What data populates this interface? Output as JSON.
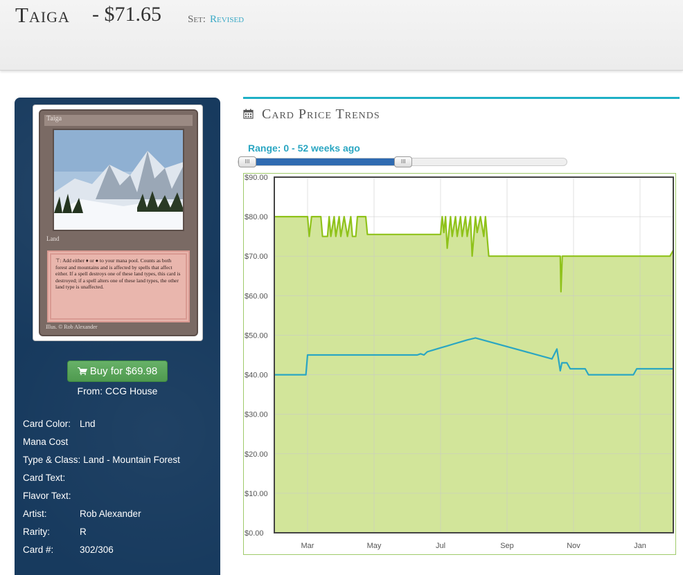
{
  "header": {
    "card_name": "Taiga",
    "price": "- $71.65",
    "set_label": "Set:",
    "set_name": "Revised"
  },
  "card_image": {
    "name": "Taiga",
    "type_line": "Land",
    "rules_text": "⊤: Add either ♦ or ● to your mana pool. Counts as both forest and mountains and is affected by spells that affect either. If a spell destroys one of these land types, this card is destroyed; if a spell alters one of these land types, the other land type is unaffected.",
    "illustrator": "Illus. © Rob Alexander"
  },
  "buy": {
    "label": "Buy for $69.98",
    "icon": "shopping-cart-icon",
    "from": "From: CCG House"
  },
  "details": [
    {
      "key": "Card Color:",
      "value": "Lnd"
    },
    {
      "key": "Mana Cost",
      "value": ""
    },
    {
      "key": "Type & Class:",
      "value": "Land - Mountain Forest"
    },
    {
      "key": "Card Text:",
      "value": ""
    },
    {
      "key": "Flavor Text:",
      "value": ""
    },
    {
      "key": "Artist:",
      "value": "Rob Alexander"
    },
    {
      "key": "Rarity:",
      "value": "R"
    },
    {
      "key": "Card #:",
      "value": "302/306"
    }
  ],
  "trends": {
    "title": "Card Price Trends",
    "icon": "calendar-icon",
    "range_text": "Range: 0 - 52 weeks ago",
    "range_start_weeks_ago": 0,
    "range_end_weeks_ago": 52,
    "slider_max_weeks": 200
  },
  "colors": {
    "sidebar": "#173a5e",
    "accent": "#1eb0c6",
    "high_series": "#8fc21a",
    "low_series": "#2aa6c2",
    "fill": "#d2e59a"
  },
  "chart_data": {
    "type": "line",
    "yticks": [
      "$90.00",
      "$80.00",
      "$70.00",
      "$60.00",
      "$50.00",
      "$40.00",
      "$30.00",
      "$20.00",
      "$10.00",
      "$0.00"
    ],
    "xticks": [
      "Mar",
      "May",
      "Jul",
      "Sep",
      "Nov",
      "Jan"
    ],
    "ylim": [
      0,
      90
    ],
    "xlim": [
      0,
      12
    ],
    "grid": true,
    "series": [
      {
        "color": "#8fc21a",
        "area": true,
        "points": [
          [
            0,
            80
          ],
          [
            1.0,
            80
          ],
          [
            1.05,
            75
          ],
          [
            1.12,
            80
          ],
          [
            1.4,
            80
          ],
          [
            1.45,
            75
          ],
          [
            1.6,
            75
          ],
          [
            1.65,
            80
          ],
          [
            1.7,
            75
          ],
          [
            1.8,
            80
          ],
          [
            1.85,
            75
          ],
          [
            1.95,
            80
          ],
          [
            2.0,
            75
          ],
          [
            2.1,
            80
          ],
          [
            2.2,
            75
          ],
          [
            2.3,
            80
          ],
          [
            2.35,
            75
          ],
          [
            2.45,
            75
          ],
          [
            2.5,
            80
          ],
          [
            2.75,
            80
          ],
          [
            2.8,
            75.5
          ],
          [
            5.0,
            75.5
          ],
          [
            5.05,
            80
          ],
          [
            5.1,
            76
          ],
          [
            5.15,
            80
          ],
          [
            5.2,
            72
          ],
          [
            5.3,
            80
          ],
          [
            5.35,
            75
          ],
          [
            5.45,
            80
          ],
          [
            5.5,
            75
          ],
          [
            5.6,
            80
          ],
          [
            5.65,
            75
          ],
          [
            5.75,
            80
          ],
          [
            5.8,
            75
          ],
          [
            5.9,
            80
          ],
          [
            5.95,
            70
          ],
          [
            6.05,
            80
          ],
          [
            6.1,
            76
          ],
          [
            6.2,
            80
          ],
          [
            6.3,
            75
          ],
          [
            6.35,
            80
          ],
          [
            6.45,
            70
          ],
          [
            8.6,
            70
          ],
          [
            8.62,
            61
          ],
          [
            8.66,
            70
          ],
          [
            11.9,
            70
          ],
          [
            12.0,
            71.5
          ]
        ]
      },
      {
        "color": "#2aa6c2",
        "area": false,
        "points": [
          [
            0,
            40
          ],
          [
            0.95,
            40
          ],
          [
            1.0,
            45
          ],
          [
            4.3,
            45
          ],
          [
            4.4,
            45.3
          ],
          [
            4.5,
            45
          ],
          [
            4.6,
            45.8
          ],
          [
            4.8,
            46.3
          ],
          [
            5.0,
            46.8
          ],
          [
            5.2,
            47.3
          ],
          [
            5.4,
            47.8
          ],
          [
            5.6,
            48.3
          ],
          [
            5.8,
            48.8
          ],
          [
            6.05,
            49.3
          ],
          [
            8.35,
            44
          ],
          [
            8.5,
            46.5
          ],
          [
            8.6,
            41
          ],
          [
            8.65,
            43
          ],
          [
            8.8,
            43
          ],
          [
            8.9,
            41.5
          ],
          [
            9.35,
            41.5
          ],
          [
            9.45,
            40
          ],
          [
            10.8,
            40
          ],
          [
            10.9,
            41.5
          ],
          [
            12.0,
            41.5
          ]
        ]
      }
    ]
  }
}
